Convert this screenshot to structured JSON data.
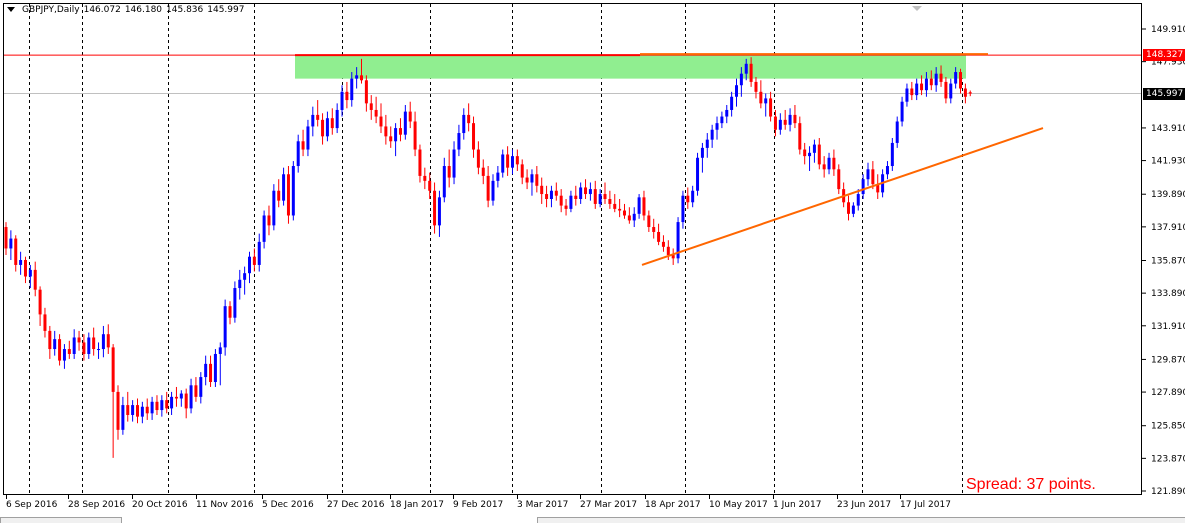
{
  "header": {
    "symbol_label": "GBPJPY,Daily",
    "open": "146.072",
    "high": "146.180",
    "low": "145.836",
    "close": "145.997"
  },
  "price_axis": {
    "ticks": [
      "149.910",
      "147.930",
      "143.910",
      "141.930",
      "139.890",
      "137.910",
      "135.870",
      "133.890",
      "131.910",
      "129.870",
      "127.890",
      "125.850",
      "123.870",
      "121.890"
    ],
    "current_price_tag": "145.997",
    "resistance_price_tag": "148.327"
  },
  "time_axis": {
    "labels": [
      "6 Sep 2016",
      "28 Sep 2016",
      "20 Oct 2016",
      "11 Nov 2016",
      "5 Dec 2016",
      "27 Dec 2016",
      "18 Jan 2017",
      "9 Feb 2017",
      "3 Mar 2017",
      "27 Mar 2017",
      "18 Apr 2017",
      "10 May 2017",
      "1 Jun 2017",
      "23 Jun 2017",
      "17 Jul 2017"
    ]
  },
  "spread_text": "Spread: 37 points.",
  "colors": {
    "bull": "#0000ff",
    "bear": "#ff0000",
    "resistance_line": "#ff0000",
    "zone_fill": "#90ee90",
    "trendline": "#ff6600",
    "grid": "#000000",
    "bid_line": "#c0c0c0",
    "current_tag_bg": "#000000",
    "resistance_tag_bg": "#ff0000"
  },
  "chart_data": {
    "type": "candlestick",
    "symbol": "GBPJPY",
    "timeframe": "Daily",
    "ylim": [
      121.89,
      150.5
    ],
    "resistance_level": 148.327,
    "bid_level": 145.997,
    "zone": {
      "from_date": "7 Dec 2016",
      "to_date": "20 Jul 2017",
      "high": 148.327,
      "low": 146.9
    },
    "trendline": {
      "start": [
        "31 Mar 2017",
        135.6
      ],
      "end": [
        "2 Aug 2017",
        143.9
      ]
    },
    "candles": [
      [
        0,
        137.9,
        138.2,
        136.2,
        136.6
      ],
      [
        1,
        136.6,
        137.7,
        135.9,
        137.2
      ],
      [
        2,
        137.2,
        137.4,
        135.2,
        135.6
      ],
      [
        3,
        135.6,
        136.4,
        135.0,
        135.9
      ],
      [
        4,
        135.9,
        136.1,
        134.5,
        134.9
      ],
      [
        5,
        134.9,
        135.6,
        134.2,
        135.3
      ],
      [
        6,
        135.3,
        135.8,
        133.7,
        134.1
      ],
      [
        7,
        134.1,
        134.3,
        131.9,
        132.6
      ],
      [
        8,
        132.6,
        133.0,
        131.2,
        131.6
      ],
      [
        9,
        131.6,
        131.9,
        129.9,
        130.5
      ],
      [
        10,
        130.5,
        131.6,
        130.1,
        131.1
      ],
      [
        11,
        131.1,
        131.4,
        129.5,
        129.8
      ],
      [
        12,
        129.8,
        130.8,
        129.3,
        130.5
      ],
      [
        13,
        130.5,
        131.0,
        129.9,
        130.2
      ],
      [
        14,
        130.2,
        131.7,
        129.9,
        131.2
      ],
      [
        15,
        131.2,
        131.6,
        130.4,
        130.9
      ],
      [
        16,
        130.9,
        131.4,
        129.8,
        130.2
      ],
      [
        17,
        130.2,
        131.5,
        129.9,
        131.2
      ],
      [
        18,
        131.2,
        131.8,
        130.1,
        130.5
      ],
      [
        19,
        130.5,
        130.9,
        129.9,
        130.5
      ],
      [
        20,
        130.5,
        131.9,
        130.0,
        131.4
      ],
      [
        21,
        131.4,
        132.0,
        130.2,
        130.6
      ],
      [
        22,
        130.6,
        130.8,
        123.9,
        127.9
      ],
      [
        23,
        127.9,
        128.3,
        125.0,
        125.6
      ],
      [
        24,
        125.6,
        127.6,
        125.3,
        127.1
      ],
      [
        25,
        127.1,
        127.9,
        126.1,
        126.5
      ],
      [
        26,
        126.5,
        127.4,
        126.1,
        127.1
      ],
      [
        27,
        127.1,
        127.5,
        126.0,
        126.4
      ],
      [
        28,
        126.4,
        127.3,
        126.0,
        127.0
      ],
      [
        29,
        127.0,
        127.5,
        126.2,
        126.6
      ],
      [
        30,
        126.6,
        127.6,
        126.2,
        127.3
      ],
      [
        31,
        127.3,
        127.7,
        126.5,
        126.8
      ],
      [
        32,
        126.8,
        127.7,
        126.4,
        127.4
      ],
      [
        33,
        127.4,
        127.9,
        126.6,
        126.9
      ],
      [
        34,
        126.9,
        127.9,
        126.5,
        127.6
      ],
      [
        35,
        127.6,
        128.2,
        127.0,
        127.5
      ],
      [
        36,
        127.5,
        128.0,
        127.0,
        127.8
      ],
      [
        37,
        127.8,
        128.1,
        126.3,
        126.9
      ],
      [
        38,
        126.9,
        128.7,
        126.6,
        128.3
      ],
      [
        39,
        128.3,
        128.8,
        127.3,
        127.6
      ],
      [
        40,
        127.6,
        129.1,
        127.2,
        128.8
      ],
      [
        41,
        128.8,
        130.1,
        128.3,
        129.6
      ],
      [
        42,
        129.6,
        130.1,
        128.2,
        128.5
      ],
      [
        43,
        128.5,
        130.5,
        128.2,
        130.2
      ],
      [
        44,
        130.2,
        130.9,
        128.3,
        130.6
      ],
      [
        45,
        130.6,
        133.5,
        130.1,
        133.1
      ],
      [
        46,
        133.1,
        133.4,
        132.0,
        132.4
      ],
      [
        47,
        132.4,
        134.6,
        132.1,
        134.2
      ],
      [
        48,
        134.2,
        135.3,
        133.5,
        134.7
      ],
      [
        49,
        134.7,
        135.5,
        133.8,
        135.1
      ],
      [
        50,
        135.1,
        136.4,
        134.5,
        136.1
      ],
      [
        51,
        136.1,
        136.6,
        135.2,
        135.6
      ],
      [
        52,
        135.6,
        137.5,
        135.2,
        137.0
      ],
      [
        53,
        137.0,
        138.9,
        136.6,
        138.6
      ],
      [
        54,
        138.6,
        139.2,
        137.4,
        138.0
      ],
      [
        55,
        138.0,
        140.5,
        137.7,
        140.1
      ],
      [
        56,
        140.1,
        140.8,
        139.1,
        139.5
      ],
      [
        57,
        139.5,
        141.5,
        139.2,
        141.1
      ],
      [
        58,
        141.1,
        141.6,
        138.1,
        138.6
      ],
      [
        59,
        138.6,
        141.9,
        138.3,
        141.6
      ],
      [
        60,
        141.6,
        143.5,
        141.2,
        143.1
      ],
      [
        61,
        143.1,
        143.8,
        142.2,
        142.6
      ],
      [
        62,
        142.6,
        144.4,
        142.2,
        144.0
      ],
      [
        63,
        144.0,
        145.2,
        143.4,
        144.7
      ],
      [
        64,
        144.7,
        145.6,
        144.0,
        144.4
      ],
      [
        65,
        144.4,
        144.8,
        142.9,
        143.4
      ],
      [
        66,
        143.4,
        144.9,
        143.1,
        144.5
      ],
      [
        67,
        144.5,
        145.1,
        143.5,
        143.9
      ],
      [
        68,
        143.9,
        145.4,
        143.6,
        145.0
      ],
      [
        69,
        145.0,
        146.5,
        144.6,
        146.1
      ],
      [
        70,
        146.1,
        146.7,
        145.1,
        145.6
      ],
      [
        71,
        145.6,
        147.3,
        145.2,
        146.9
      ],
      [
        72,
        146.9,
        147.6,
        146.3,
        147.1
      ],
      [
        73,
        147.1,
        148.1,
        146.6,
        146.8
      ],
      [
        74,
        146.8,
        147.1,
        144.9,
        145.4
      ],
      [
        75,
        145.4,
        145.9,
        144.4,
        145.0
      ],
      [
        76,
        145.0,
        145.8,
        144.2,
        144.6
      ],
      [
        77,
        144.6,
        145.4,
        143.6,
        144.0
      ],
      [
        78,
        144.0,
        144.7,
        142.9,
        143.4
      ],
      [
        79,
        143.4,
        144.0,
        142.7,
        143.1
      ],
      [
        80,
        143.1,
        144.2,
        142.2,
        143.9
      ],
      [
        81,
        143.9,
        144.5,
        143.1,
        143.5
      ],
      [
        82,
        143.5,
        145.3,
        143.2,
        144.9
      ],
      [
        83,
        144.9,
        145.5,
        143.9,
        144.3
      ],
      [
        84,
        144.3,
        144.9,
        142.2,
        142.6
      ],
      [
        85,
        142.6,
        142.9,
        140.6,
        141.0
      ],
      [
        86,
        141.0,
        141.5,
        140.2,
        140.7
      ],
      [
        87,
        140.7,
        141.2,
        139.6,
        140.1
      ],
      [
        88,
        140.1,
        140.6,
        137.5,
        138.0
      ],
      [
        89,
        138.0,
        140.1,
        137.3,
        139.7
      ],
      [
        90,
        139.7,
        142.1,
        139.4,
        141.6
      ],
      [
        91,
        141.6,
        142.6,
        140.3,
        140.9
      ],
      [
        92,
        140.9,
        143.1,
        140.5,
        142.6
      ],
      [
        93,
        142.6,
        144.1,
        142.2,
        143.6
      ],
      [
        94,
        143.6,
        145.1,
        143.2,
        144.7
      ],
      [
        95,
        144.7,
        145.4,
        143.7,
        144.2
      ],
      [
        96,
        144.2,
        144.6,
        142.1,
        142.6
      ],
      [
        97,
        142.6,
        143.1,
        141.1,
        141.5
      ],
      [
        98,
        141.5,
        142.0,
        140.5,
        141.0
      ],
      [
        99,
        141.0,
        141.6,
        139.1,
        139.5
      ],
      [
        100,
        139.5,
        141.1,
        139.2,
        140.7
      ],
      [
        101,
        140.7,
        141.6,
        140.3,
        141.2
      ],
      [
        102,
        141.2,
        142.6,
        140.9,
        142.3
      ],
      [
        103,
        142.3,
        142.8,
        141.0,
        141.5
      ],
      [
        104,
        141.5,
        142.6,
        141.1,
        142.2
      ],
      [
        105,
        142.2,
        142.6,
        141.3,
        141.7
      ],
      [
        106,
        141.7,
        142.0,
        140.5,
        140.9
      ],
      [
        107,
        140.9,
        141.4,
        140.2,
        140.6
      ],
      [
        108,
        140.6,
        141.4,
        139.8,
        141.1
      ],
      [
        109,
        141.1,
        141.6,
        140.0,
        140.4
      ],
      [
        110,
        140.4,
        140.9,
        139.3,
        139.9
      ],
      [
        111,
        139.9,
        140.4,
        139.1,
        139.6
      ],
      [
        112,
        139.6,
        140.4,
        139.1,
        140.1
      ],
      [
        113,
        140.1,
        140.6,
        139.5,
        139.8
      ],
      [
        114,
        139.8,
        140.2,
        138.8,
        139.2
      ],
      [
        115,
        139.2,
        139.6,
        138.6,
        139.0
      ],
      [
        116,
        139.0,
        140.1,
        138.8,
        139.8
      ],
      [
        117,
        139.8,
        140.4,
        139.2,
        139.6
      ],
      [
        118,
        139.6,
        140.6,
        139.3,
        140.3
      ],
      [
        119,
        140.3,
        140.8,
        139.6,
        139.9
      ],
      [
        120,
        139.9,
        140.6,
        139.5,
        140.2
      ],
      [
        121,
        140.2,
        140.7,
        139.0,
        139.3
      ],
      [
        122,
        139.3,
        140.2,
        139.1,
        139.9
      ],
      [
        123,
        139.9,
        140.6,
        139.3,
        139.6
      ],
      [
        124,
        139.6,
        140.1,
        139.0,
        139.3
      ],
      [
        125,
        139.3,
        139.9,
        138.8,
        139.0
      ],
      [
        126,
        139.0,
        139.6,
        138.5,
        138.9
      ],
      [
        127,
        138.9,
        139.3,
        138.4,
        138.6
      ],
      [
        128,
        138.6,
        139.1,
        138.1,
        138.3
      ],
      [
        129,
        138.3,
        139.1,
        137.9,
        138.7
      ],
      [
        130,
        138.7,
        139.9,
        138.4,
        139.7
      ],
      [
        131,
        139.7,
        140.1,
        138.3,
        138.6
      ],
      [
        132,
        138.6,
        138.9,
        137.6,
        137.9
      ],
      [
        133,
        137.9,
        138.4,
        137.2,
        137.6
      ],
      [
        134,
        137.6,
        138.1,
        136.8,
        137.0
      ],
      [
        135,
        137.0,
        137.4,
        136.4,
        136.7
      ],
      [
        136,
        136.7,
        137.1,
        135.9,
        136.2
      ],
      [
        137,
        136.2,
        136.6,
        135.6,
        136.0
      ],
      [
        138,
        136.0,
        138.5,
        135.7,
        138.2
      ],
      [
        139,
        138.2,
        140.1,
        137.8,
        139.8
      ],
      [
        140,
        139.8,
        140.3,
        139.0,
        139.4
      ],
      [
        141,
        139.4,
        140.4,
        139.1,
        140.1
      ],
      [
        142,
        140.1,
        142.4,
        139.8,
        142.1
      ],
      [
        143,
        142.1,
        143.0,
        141.2,
        142.7
      ],
      [
        144,
        142.7,
        143.6,
        142.1,
        143.2
      ],
      [
        145,
        143.2,
        144.1,
        142.7,
        143.8
      ],
      [
        146,
        143.8,
        144.6,
        143.2,
        144.2
      ],
      [
        147,
        144.2,
        144.9,
        143.9,
        144.6
      ],
      [
        148,
        144.6,
        145.3,
        144.2,
        145.0
      ],
      [
        149,
        145.0,
        146.1,
        144.6,
        145.8
      ],
      [
        150,
        145.8,
        146.9,
        145.2,
        146.5
      ],
      [
        151,
        146.5,
        147.6,
        145.8,
        147.2
      ],
      [
        152,
        147.2,
        148.1,
        146.8,
        147.8
      ],
      [
        153,
        147.8,
        148.2,
        146.4,
        146.7
      ],
      [
        154,
        146.7,
        147.0,
        145.7,
        146.1
      ],
      [
        155,
        146.1,
        146.8,
        145.1,
        145.4
      ],
      [
        156,
        145.4,
        146.0,
        144.6,
        145.7
      ],
      [
        157,
        145.7,
        146.1,
        144.3,
        144.6
      ],
      [
        158,
        144.6,
        145.0,
        143.4,
        143.8
      ],
      [
        159,
        143.8,
        144.8,
        143.5,
        144.4
      ],
      [
        160,
        144.4,
        145.0,
        143.8,
        144.1
      ],
      [
        161,
        144.1,
        145.1,
        143.7,
        144.7
      ],
      [
        162,
        144.7,
        145.3,
        143.9,
        144.2
      ],
      [
        163,
        144.2,
        144.6,
        142.3,
        142.6
      ],
      [
        164,
        142.6,
        143.0,
        141.7,
        142.2
      ],
      [
        165,
        142.2,
        142.8,
        141.3,
        142.4
      ],
      [
        166,
        142.4,
        143.2,
        141.8,
        142.9
      ],
      [
        167,
        142.9,
        143.3,
        141.4,
        141.7
      ],
      [
        168,
        141.7,
        142.2,
        140.9,
        141.4
      ],
      [
        169,
        141.4,
        142.4,
        141.1,
        142.1
      ],
      [
        170,
        142.1,
        142.6,
        141.0,
        141.4
      ],
      [
        171,
        141.4,
        141.7,
        139.9,
        140.2
      ],
      [
        172,
        140.2,
        140.6,
        139.1,
        139.4
      ],
      [
        173,
        139.4,
        139.8,
        138.3,
        138.7
      ],
      [
        174,
        138.7,
        139.4,
        138.5,
        139.2
      ],
      [
        175,
        139.2,
        140.2,
        138.9,
        139.9
      ],
      [
        176,
        139.9,
        141.1,
        139.6,
        140.8
      ],
      [
        177,
        140.8,
        141.8,
        140.4,
        141.4
      ],
      [
        178,
        141.4,
        141.9,
        140.2,
        140.5
      ],
      [
        179,
        140.5,
        141.1,
        139.6,
        140.0
      ],
      [
        180,
        140.0,
        141.4,
        139.7,
        141.1
      ],
      [
        181,
        141.1,
        141.9,
        140.8,
        141.6
      ],
      [
        182,
        141.6,
        143.3,
        141.3,
        143.0
      ],
      [
        183,
        143.0,
        144.6,
        142.7,
        144.3
      ],
      [
        184,
        144.3,
        145.8,
        144.0,
        145.5
      ],
      [
        185,
        145.5,
        146.6,
        145.2,
        146.3
      ],
      [
        186,
        146.3,
        146.7,
        145.6,
        145.9
      ],
      [
        187,
        145.9,
        146.9,
        145.6,
        146.6
      ],
      [
        188,
        146.6,
        147.1,
        145.9,
        146.2
      ],
      [
        189,
        146.2,
        147.3,
        145.8,
        146.9
      ],
      [
        190,
        146.9,
        147.4,
        146.2,
        146.5
      ],
      [
        191,
        146.5,
        147.6,
        146.1,
        147.2
      ],
      [
        192,
        147.2,
        147.7,
        146.4,
        146.7
      ],
      [
        193,
        146.7,
        147.0,
        145.4,
        145.7
      ],
      [
        194,
        145.7,
        146.9,
        145.4,
        146.6
      ],
      [
        195,
        146.6,
        147.6,
        146.3,
        147.3
      ],
      [
        196,
        147.3,
        147.5,
        146.0,
        146.3
      ],
      [
        197,
        146.3,
        146.6,
        145.4,
        145.8
      ],
      [
        198,
        146.072,
        146.18,
        145.836,
        145.997
      ]
    ]
  }
}
